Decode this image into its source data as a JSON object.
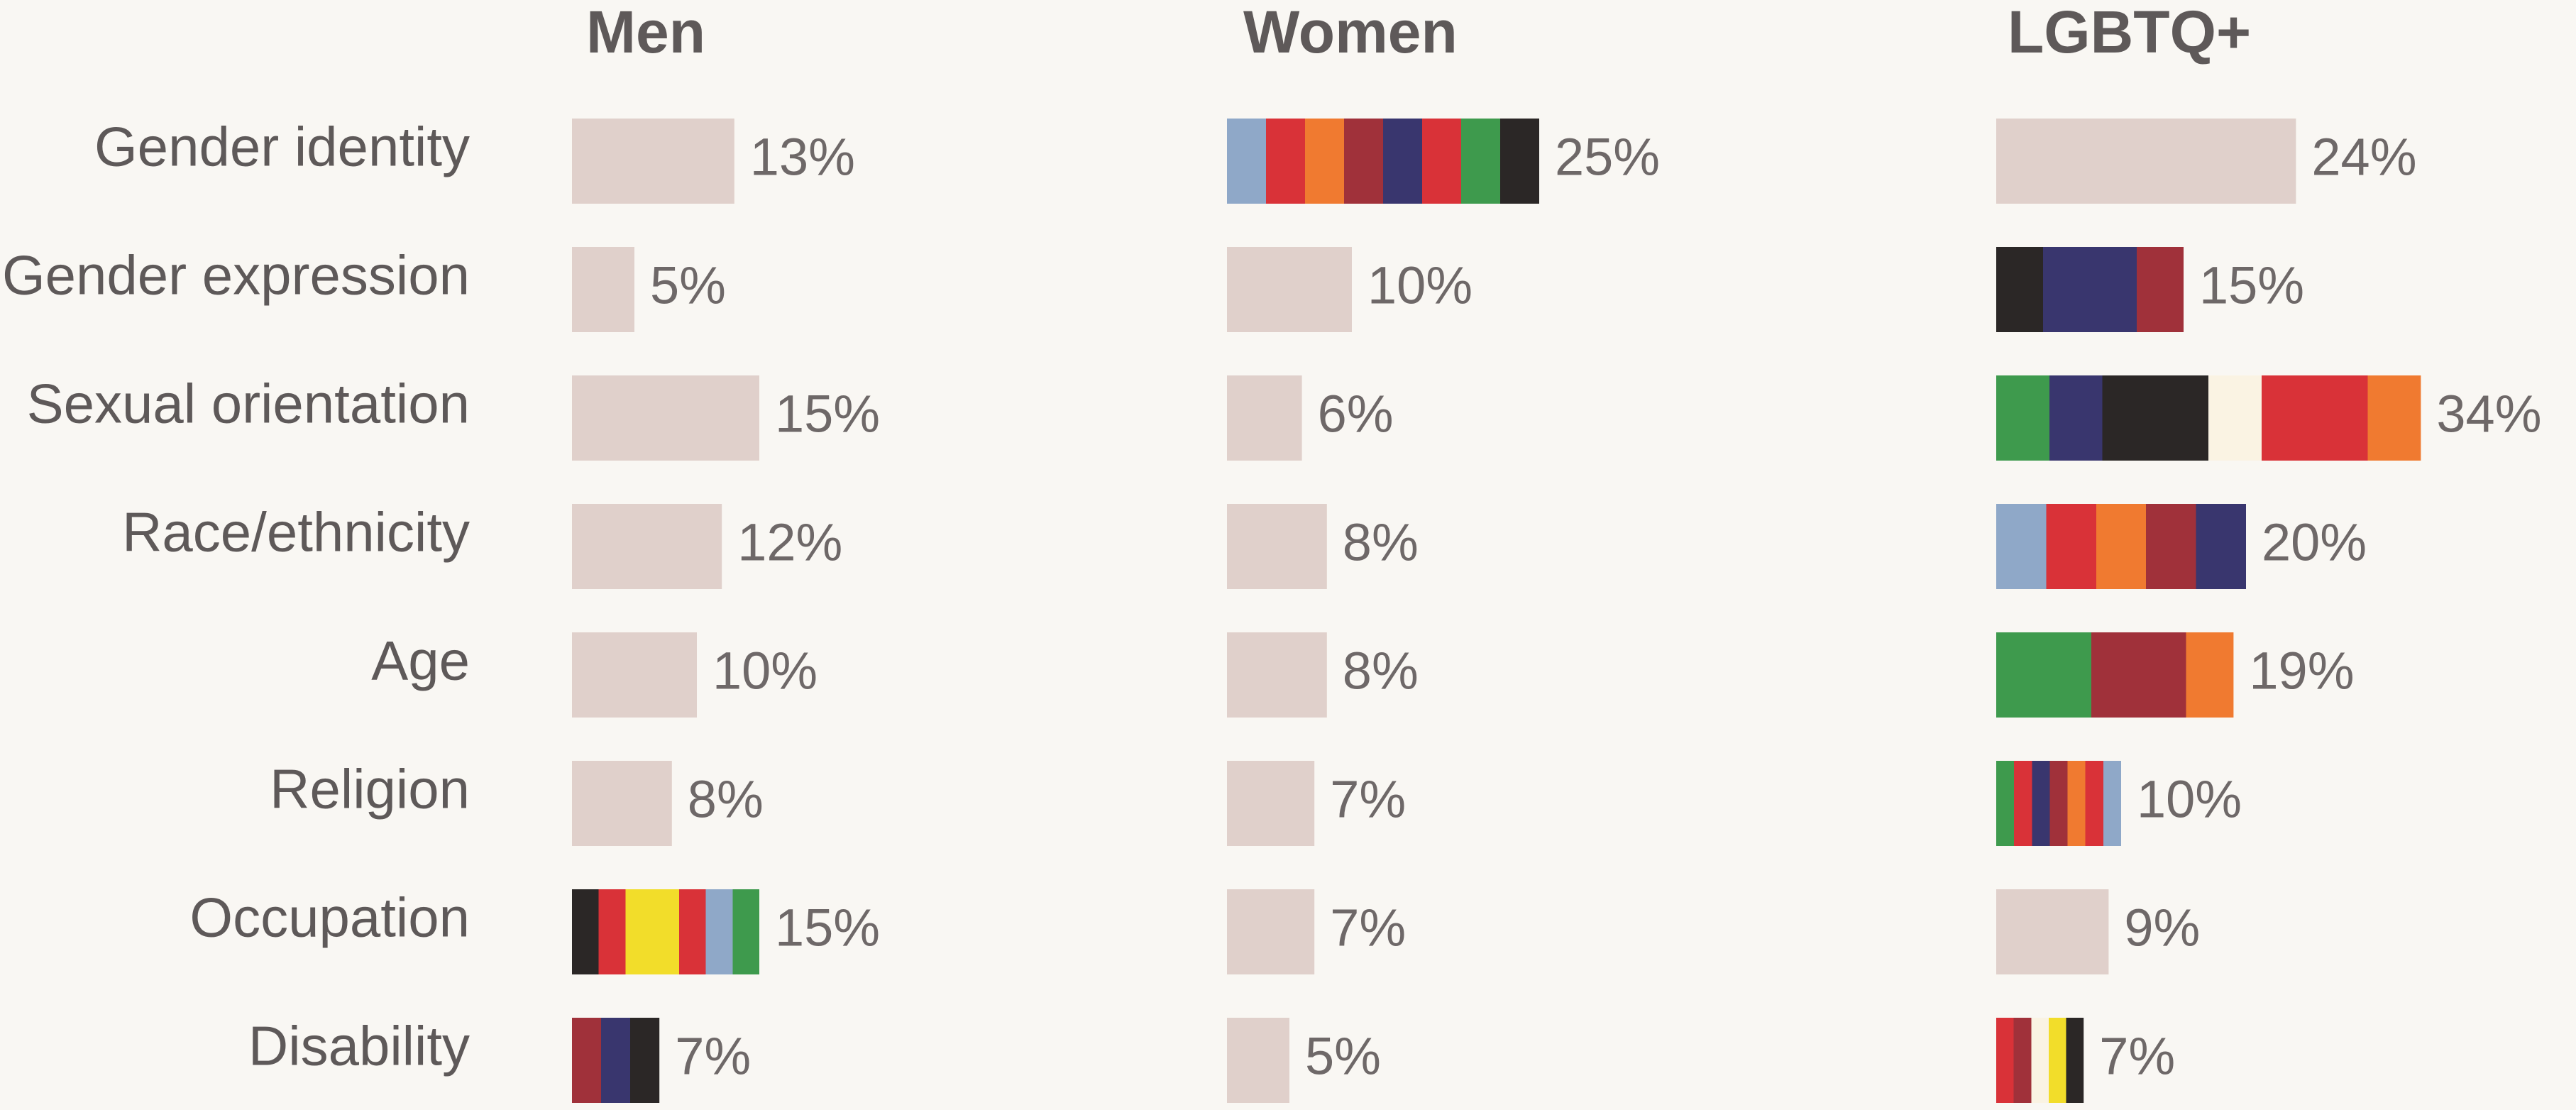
{
  "chart_data": {
    "type": "bar",
    "categories": [
      "Gender identity",
      "Gender expression",
      "Sexual orientation",
      "Race/ethnicity",
      "Age",
      "Religion",
      "Occupation",
      "Disability"
    ],
    "series": [
      {
        "name": "Men",
        "values": [
          13,
          5,
          15,
          12,
          10,
          8,
          15,
          7
        ],
        "value_labels": [
          "13%",
          "5%",
          "15%",
          "12%",
          "10%",
          "8%",
          "15%",
          "7%"
        ],
        "colors": [
          "#e0d0cb",
          "#e0d0cb",
          "#e0d0cb",
          "#e0d0cb",
          "#e0d0cb",
          "#e0d0cb",
          [
            "#2b2726",
            "#d93238",
            "#f2dd2a",
            "#f2dd2a",
            "#d93238",
            "#8fa8c8",
            "#3e9a4d"
          ],
          [
            "#a0313a",
            "#39366e",
            "#2b2726"
          ]
        ]
      },
      {
        "name": "Women",
        "values": [
          25,
          10,
          6,
          8,
          8,
          7,
          7,
          5
        ],
        "value_labels": [
          "25%",
          "10%",
          "6%",
          "8%",
          "8%",
          "7%",
          "7%",
          "5%"
        ],
        "colors": [
          [
            "#8fa8c8",
            "#d93238",
            "#f07a30",
            "#a0313a",
            "#39366e",
            "#d93238",
            "#3e9a4d",
            "#2b2726"
          ],
          "#e0d0cb",
          "#e0d0cb",
          "#e0d0cb",
          "#e0d0cb",
          "#e0d0cb",
          "#e0d0cb",
          "#e0d0cb"
        ]
      },
      {
        "name": "LGBTQ+",
        "values": [
          24,
          15,
          34,
          20,
          19,
          10,
          9,
          7
        ],
        "value_labels": [
          "24%",
          "15%",
          "34%",
          "20%",
          "19%",
          "10%",
          "9%",
          "7%"
        ],
        "colors": [
          "#e0d0cb",
          [
            "#2b2726",
            "#39366e",
            "#39366e",
            "#a0313a"
          ],
          [
            "#3e9a4d",
            "#39366e",
            "#2b2726",
            "#2b2726",
            "#faf3e3",
            "#d93238",
            "#d93238",
            "#f07a30"
          ],
          [
            "#8fa8c8",
            "#d93238",
            "#f07a30",
            "#a0313a",
            "#39366e"
          ],
          [
            "#3e9a4d",
            "#3e9a4d",
            "#a0313a",
            "#a0313a",
            "#f07a30"
          ],
          [
            "#3e9a4d",
            "#d93238",
            "#39366e",
            "#a0313a",
            "#f07a30",
            "#d93238",
            "#8fa8c8"
          ],
          "#e0d0cb",
          [
            "#d93238",
            "#a0313a",
            "#faf3e3",
            "#f2dd2a",
            "#2b2726"
          ]
        ]
      }
    ]
  }
}
